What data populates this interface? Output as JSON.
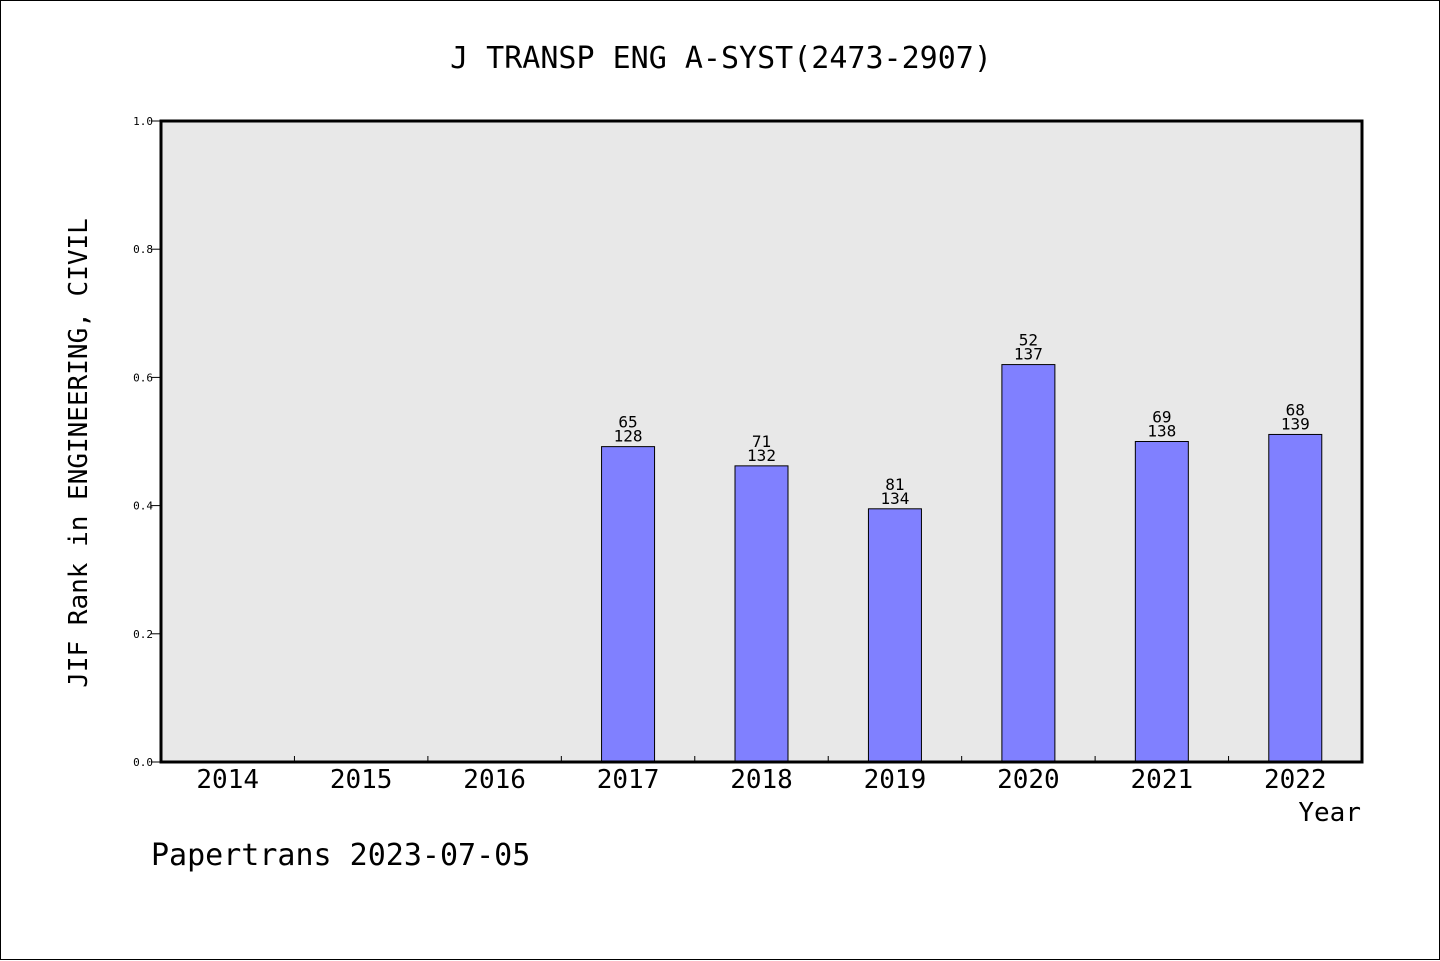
{
  "chart_data": {
    "type": "bar",
    "title": "J TRANSP ENG A-SYST(2473-2907)",
    "xlabel": "Year",
    "ylabel": "JIF Rank in ENGINEERING, CIVIL",
    "ylim": [
      0.0,
      1.0
    ],
    "yticks": [
      "0.0",
      "0.2",
      "0.4",
      "0.6",
      "0.8",
      "1.0"
    ],
    "categories": [
      "2014",
      "2015",
      "2016",
      "2017",
      "2018",
      "2019",
      "2020",
      "2021",
      "2022"
    ],
    "values": [
      null,
      null,
      null,
      0.492,
      0.462,
      0.395,
      0.62,
      0.5,
      0.511
    ],
    "rank": [
      null,
      null,
      null,
      "65",
      "71",
      "81",
      "52",
      "69",
      "68"
    ],
    "total": [
      null,
      null,
      null,
      "128",
      "132",
      "134",
      "137",
      "138",
      "139"
    ],
    "grid": false,
    "legend": "none"
  },
  "footer": "Papertrans 2023-07-05",
  "colors": {
    "bar": "#8080ff",
    "plot_background": "#e8e8e8"
  }
}
